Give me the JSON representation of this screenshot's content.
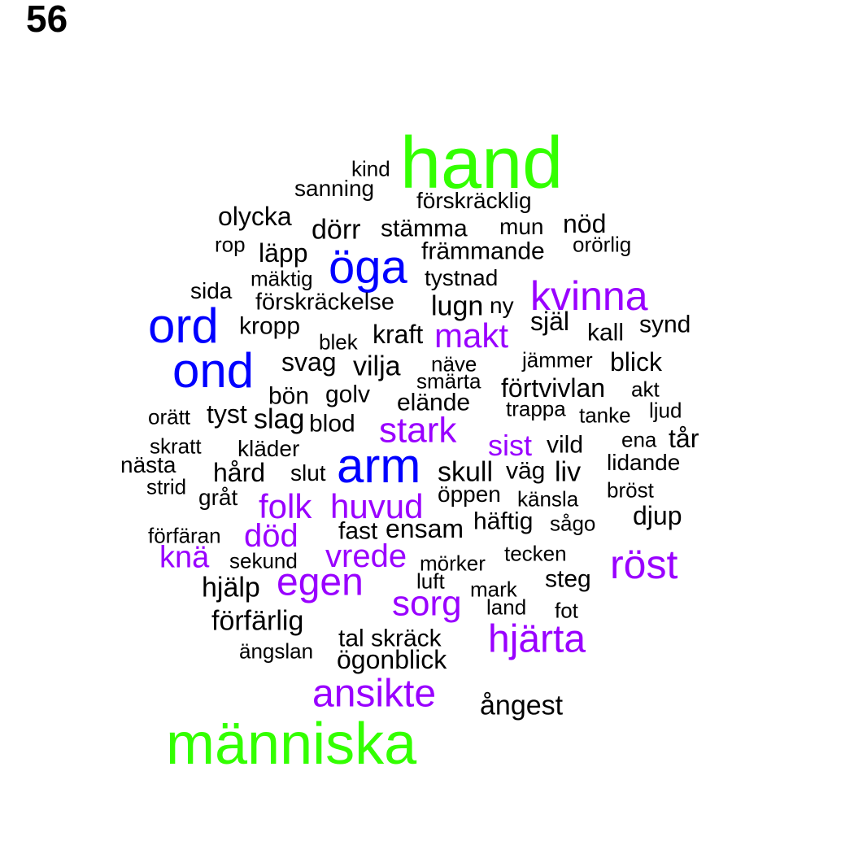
{
  "page_number": "56",
  "colors": {
    "green": "#33ff00",
    "blue": "#0000ff",
    "purple": "#9900ff",
    "black": "#000000"
  },
  "words": [
    {
      "text": "hand",
      "color": "green"
    },
    {
      "text": "människa",
      "color": "green"
    },
    {
      "text": "ord",
      "color": "blue"
    },
    {
      "text": "ond",
      "color": "blue"
    },
    {
      "text": "öga",
      "color": "blue"
    },
    {
      "text": "arm",
      "color": "blue"
    },
    {
      "text": "kvinna",
      "color": "purple"
    },
    {
      "text": "makt",
      "color": "purple"
    },
    {
      "text": "stark",
      "color": "purple"
    },
    {
      "text": "sist",
      "color": "purple"
    },
    {
      "text": "folk",
      "color": "purple"
    },
    {
      "text": "huvud",
      "color": "purple"
    },
    {
      "text": "död",
      "color": "purple"
    },
    {
      "text": "knä",
      "color": "purple"
    },
    {
      "text": "vrede",
      "color": "purple"
    },
    {
      "text": "egen",
      "color": "purple"
    },
    {
      "text": "röst",
      "color": "purple"
    },
    {
      "text": "sorg",
      "color": "purple"
    },
    {
      "text": "hjärta",
      "color": "purple"
    },
    {
      "text": "ansikte",
      "color": "purple"
    },
    {
      "text": "kind",
      "color": "black"
    },
    {
      "text": "sanning",
      "color": "black"
    },
    {
      "text": "förskräcklig",
      "color": "black"
    },
    {
      "text": "olycka",
      "color": "black"
    },
    {
      "text": "dörr",
      "color": "black"
    },
    {
      "text": "stämma",
      "color": "black"
    },
    {
      "text": "mun",
      "color": "black"
    },
    {
      "text": "nöd",
      "color": "black"
    },
    {
      "text": "rop",
      "color": "black"
    },
    {
      "text": "läpp",
      "color": "black"
    },
    {
      "text": "främmande",
      "color": "black"
    },
    {
      "text": "orörlig",
      "color": "black"
    },
    {
      "text": "mäktig",
      "color": "black"
    },
    {
      "text": "tystnad",
      "color": "black"
    },
    {
      "text": "sida",
      "color": "black"
    },
    {
      "text": "förskräckelse",
      "color": "black"
    },
    {
      "text": "lugn",
      "color": "black"
    },
    {
      "text": "ny",
      "color": "black"
    },
    {
      "text": "kropp",
      "color": "black"
    },
    {
      "text": "blek",
      "color": "black"
    },
    {
      "text": "kraft",
      "color": "black"
    },
    {
      "text": "själ",
      "color": "black"
    },
    {
      "text": "kall",
      "color": "black"
    },
    {
      "text": "synd",
      "color": "black"
    },
    {
      "text": "svag",
      "color": "black"
    },
    {
      "text": "vilja",
      "color": "black"
    },
    {
      "text": "näve",
      "color": "black"
    },
    {
      "text": "jämmer",
      "color": "black"
    },
    {
      "text": "blick",
      "color": "black"
    },
    {
      "text": "smärta",
      "color": "black"
    },
    {
      "text": "bön",
      "color": "black"
    },
    {
      "text": "golv",
      "color": "black"
    },
    {
      "text": "förtvivlan",
      "color": "black"
    },
    {
      "text": "akt",
      "color": "black"
    },
    {
      "text": "orätt",
      "color": "black"
    },
    {
      "text": "tyst",
      "color": "black"
    },
    {
      "text": "slag",
      "color": "black"
    },
    {
      "text": "blod",
      "color": "black"
    },
    {
      "text": "elände",
      "color": "black"
    },
    {
      "text": "trappa",
      "color": "black"
    },
    {
      "text": "tanke",
      "color": "black"
    },
    {
      "text": "ljud",
      "color": "black"
    },
    {
      "text": "skratt",
      "color": "black"
    },
    {
      "text": "kläder",
      "color": "black"
    },
    {
      "text": "vild",
      "color": "black"
    },
    {
      "text": "ena",
      "color": "black"
    },
    {
      "text": "tår",
      "color": "black"
    },
    {
      "text": "nästa",
      "color": "black"
    },
    {
      "text": "hård",
      "color": "black"
    },
    {
      "text": "slut",
      "color": "black"
    },
    {
      "text": "skull",
      "color": "black"
    },
    {
      "text": "väg",
      "color": "black"
    },
    {
      "text": "liv",
      "color": "black"
    },
    {
      "text": "lidande",
      "color": "black"
    },
    {
      "text": "strid",
      "color": "black"
    },
    {
      "text": "gråt",
      "color": "black"
    },
    {
      "text": "öppen",
      "color": "black"
    },
    {
      "text": "känsla",
      "color": "black"
    },
    {
      "text": "bröst",
      "color": "black"
    },
    {
      "text": "djup",
      "color": "black"
    },
    {
      "text": "förfäran",
      "color": "black"
    },
    {
      "text": "fast",
      "color": "black"
    },
    {
      "text": "ensam",
      "color": "black"
    },
    {
      "text": "häftig",
      "color": "black"
    },
    {
      "text": "sågo",
      "color": "black"
    },
    {
      "text": "sekund",
      "color": "black"
    },
    {
      "text": "mörker",
      "color": "black"
    },
    {
      "text": "tecken",
      "color": "black"
    },
    {
      "text": "hjälp",
      "color": "black"
    },
    {
      "text": "luft",
      "color": "black"
    },
    {
      "text": "mark",
      "color": "black"
    },
    {
      "text": "steg",
      "color": "black"
    },
    {
      "text": "land",
      "color": "black"
    },
    {
      "text": "fot",
      "color": "black"
    },
    {
      "text": "förfärlig",
      "color": "black"
    },
    {
      "text": "tal",
      "color": "black"
    },
    {
      "text": "skräck",
      "color": "black"
    },
    {
      "text": "ängslan",
      "color": "black"
    },
    {
      "text": "ögonblick",
      "color": "black"
    },
    {
      "text": "ångest",
      "color": "black"
    }
  ]
}
